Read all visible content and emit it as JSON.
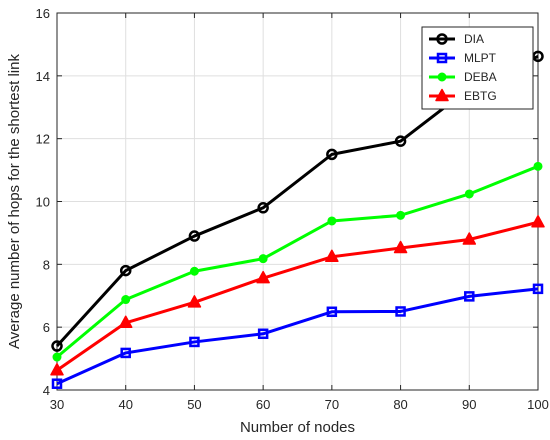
{
  "chart_data": {
    "type": "line",
    "xlabel": "Number of nodes",
    "ylabel": "Average number of hops for the shortest link",
    "x": [
      30,
      40,
      50,
      60,
      70,
      80,
      90,
      100
    ],
    "xlim": [
      30,
      100
    ],
    "ylim": [
      4,
      16
    ],
    "xticks": [
      30,
      40,
      50,
      60,
      70,
      80,
      90,
      100
    ],
    "yticks": [
      4,
      6,
      8,
      10,
      12,
      14,
      16
    ],
    "grid": true,
    "legend_position": "top-right",
    "series": [
      {
        "name": "DIA",
        "color": "#000000",
        "marker": "circle",
        "values": [
          5.4,
          7.8,
          8.9,
          9.8,
          11.5,
          11.92,
          13.6,
          14.62
        ]
      },
      {
        "name": "MLPT",
        "color": "#0000ff",
        "marker": "square",
        "values": [
          4.2,
          5.18,
          5.53,
          5.79,
          6.49,
          6.5,
          6.98,
          7.22
        ]
      },
      {
        "name": "DEBA",
        "color": "#00ff00",
        "marker": "dot",
        "values": [
          5.05,
          6.88,
          7.78,
          8.18,
          9.38,
          9.56,
          10.24,
          11.12
        ]
      },
      {
        "name": "EBTG",
        "color": "#ff0000",
        "marker": "triangle",
        "values": [
          4.63,
          6.14,
          6.79,
          7.56,
          8.24,
          8.52,
          8.79,
          9.34
        ]
      }
    ]
  }
}
